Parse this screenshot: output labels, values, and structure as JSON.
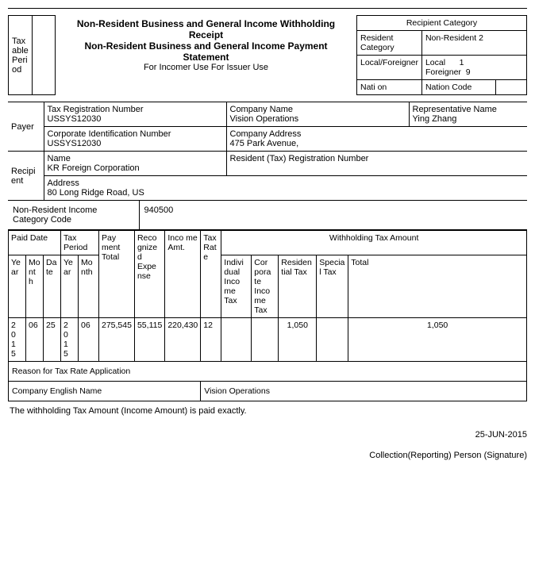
{
  "header": {
    "taxable_period_label": "Tax able Peri od",
    "title1": "Non-Resident Business and General Income Withholding Receipt",
    "title2": "Non-Resident Business and General Income Payment Statement",
    "subtitle": "For Incomer Use For Issuer Use"
  },
  "recipient_category": {
    "header": "Recipient Category",
    "resident_label": "Resident Category",
    "resident_value": "Non-Resident 2",
    "localforeigner_label": "Local/Foreigner",
    "local_label": "Local",
    "local_value": "1",
    "foreigner_label": "Foreigner",
    "foreigner_value": "9",
    "nation_label": "Nati on",
    "nation_code_label": "Nation Code"
  },
  "payer": {
    "label": "Payer",
    "tax_reg_label": "Tax Registration Number",
    "tax_reg_value": "USSYS12030",
    "company_name_label": "Company Name",
    "company_name_value": "Vision Operations",
    "rep_name_label": "Representative Name",
    "rep_name_value": "Ying Zhang",
    "corp_id_label": "Corporate Identification Number",
    "corp_id_value": "USSYS12030",
    "company_addr_label": "Company Address",
    "company_addr_value": "475 Park Avenue,"
  },
  "recipient": {
    "label": "Recipi ent",
    "name_label": "Name",
    "name_value": "KR Foreign Corporation",
    "resident_reg_label": "Resident (Tax) Registration Number",
    "address_label": "Address",
    "address_value": "80 Long Ridge Road, US"
  },
  "category": {
    "label": "Non-Resident Income Category Code",
    "value": "940500"
  },
  "table_headers": {
    "paid_date": "Paid Date",
    "tax_period": "Tax Period",
    "payment_total": "Pay ment Total",
    "recognized_expense": "Reco gnize d Expe nse",
    "income_amt": "Inco me Amt.",
    "tax_rate": "Tax Rat e",
    "withholding": "Withholding Tax Amount",
    "year": "Ye ar",
    "month": "Mo nt h",
    "date": "Da te",
    "year2": "Ye ar",
    "month2": "Mo nth",
    "individual": "Indivi dual Inco me Tax",
    "corporate": "Cor pora te Inco me Tax",
    "residential": "Residen tial Tax",
    "special": "Specia l Tax",
    "total": "Total"
  },
  "row": {
    "year": "2015",
    "month": "06",
    "date": "25",
    "tp_year": "2015",
    "tp_month": "06",
    "payment_total": "275,545",
    "recognized_expense": "55,115",
    "income_amt": "220,430",
    "tax_rate": "12",
    "individual": "",
    "corporate": "",
    "residential": "1,050",
    "special": "",
    "total": "1,050"
  },
  "reason_label": "Reason for Tax Rate Application",
  "company_eng_label": "Company English Name",
  "company_eng_value": "Vision Operations",
  "statement": "The withholding Tax Amount (Income Amount) is paid exactly.",
  "date_footer": "25-JUN-2015",
  "signature": "Collection(Reporting) Person (Signature)"
}
